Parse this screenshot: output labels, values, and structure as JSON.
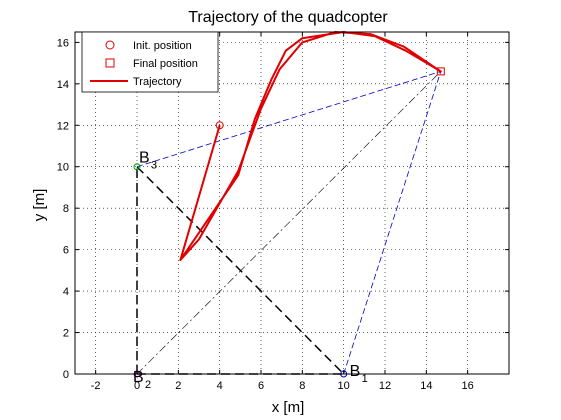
{
  "chart_data": {
    "type": "line",
    "title": "Trajectory of the quadcopter",
    "xlabel": "x [m]",
    "ylabel": "y [m]",
    "xlim": [
      -3,
      18
    ],
    "ylim": [
      0,
      16.5
    ],
    "xticks": [
      -2,
      0,
      2,
      4,
      6,
      8,
      10,
      12,
      14,
      16
    ],
    "yticks": [
      0,
      2,
      4,
      6,
      8,
      10,
      12,
      14,
      16
    ],
    "grid": true,
    "legend_placement": "top-left",
    "legend": {
      "init": "Init. position",
      "final": "Final position",
      "trajectory": "Trajectory"
    },
    "trajectory_color": "#e00000",
    "init_position": [
      4,
      12
    ],
    "final_position": [
      14.7,
      14.6
    ],
    "trajectory": {
      "x": [
        4,
        2.1,
        3.0,
        4.9,
        6.0,
        6.9,
        8.0,
        9.6,
        11.3,
        12.9,
        14.7,
        14.7,
        13.0,
        11.5,
        10.0,
        8.0,
        7.2,
        6.5,
        5.7,
        4.9,
        2.1,
        4
      ],
      "y": [
        12,
        5.5,
        6.5,
        9.8,
        12.8,
        14.7,
        16.0,
        16.5,
        16.4,
        15.8,
        14.6,
        14.6,
        15.6,
        16.3,
        16.5,
        16.2,
        15.6,
        14.2,
        12.3,
        9.6,
        5.5,
        12
      ]
    },
    "beacons": [
      {
        "id": "B",
        "sub": "1",
        "x": 10,
        "y": 0
      },
      {
        "id": "B",
        "sub": "2",
        "x": 0,
        "y": 0
      },
      {
        "id": "B",
        "sub": "3",
        "x": 0,
        "y": 10
      }
    ],
    "links": [
      {
        "from": [
          0,
          0
        ],
        "to": [
          0,
          10
        ],
        "style": "black-dashed-bold"
      },
      {
        "from": [
          0,
          10
        ],
        "to": [
          10,
          0
        ],
        "style": "black-dashed-bold"
      },
      {
        "from": [
          0,
          0
        ],
        "to": [
          10,
          0
        ],
        "style": "black-dashed-bold"
      },
      {
        "from": [
          0,
          10
        ],
        "to": [
          14.7,
          14.6
        ],
        "style": "blue-dashed"
      },
      {
        "from": [
          10,
          0
        ],
        "to": [
          14.7,
          14.6
        ],
        "style": "blue-dashed"
      },
      {
        "from": [
          0,
          0
        ],
        "to": [
          14.7,
          14.6
        ],
        "style": "black-dashdot"
      }
    ]
  }
}
